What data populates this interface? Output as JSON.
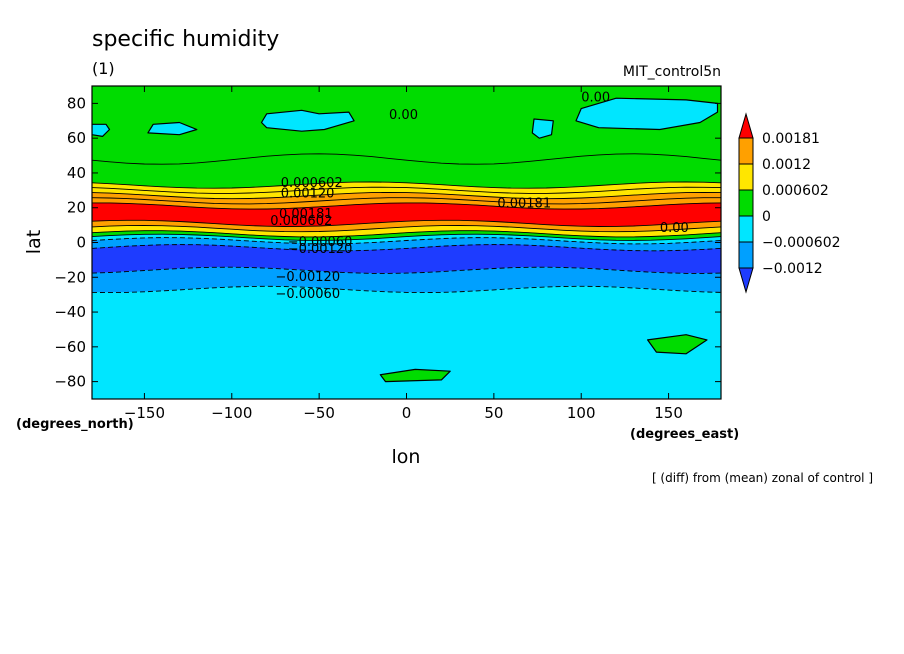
{
  "chart_data": {
    "type": "heatmap",
    "title": "specific humidity",
    "subtitle": "(1)",
    "run_label": "MIT_control5n",
    "footnote": "[ (diff) from (mean) zonal of control ]",
    "xlabel": "lon",
    "ylabel": "lat",
    "x_units": "(degrees_east)",
    "y_units": "(degrees_north)",
    "xlim": [
      -180,
      180
    ],
    "ylim": [
      -90,
      90
    ],
    "x_ticks": [
      -150,
      -100,
      -50,
      0,
      50,
      100,
      150
    ],
    "x_tick_labels": [
      "−150",
      "−100",
      "−50",
      "0",
      "50",
      "100",
      "150"
    ],
    "y_ticks": [
      80,
      60,
      40,
      20,
      0,
      -20,
      -40,
      -60,
      -80
    ],
    "y_tick_labels": [
      "80",
      "60",
      "40",
      "20",
      "0",
      "−20",
      "−40",
      "−60",
      "−80"
    ],
    "levels": [
      -0.0012,
      -0.000602,
      0,
      0.000602,
      0.0012,
      0.00181
    ],
    "legend": {
      "placement": "right",
      "entries": [
        {
          "label": "0.00181",
          "color": "#ffa000"
        },
        {
          "label": "0.0012",
          "color": "#ffe600"
        },
        {
          "label": "0.000602",
          "color": "#00dc00"
        },
        {
          "label": "0",
          "color": "#00e6ff"
        },
        {
          "label": "−0.000602",
          "color": "#00a0ff"
        },
        {
          "label": "−0.0012",
          "color": "#1e3cff"
        }
      ],
      "top_extension_color": "#ff0000",
      "bottom_extension_color": "#1e3cff"
    },
    "zonal_bands": [
      {
        "lat_from": 90,
        "lat_to": 48,
        "value": 0.0003,
        "color": "#00dc00"
      },
      {
        "lat_from": 48,
        "lat_to": 33,
        "value": 0.0004,
        "color": "#00dc00"
      },
      {
        "lat_from": 33,
        "lat_to": 30,
        "value": 0.0008,
        "color": "#ffe600"
      },
      {
        "lat_from": 30,
        "lat_to": 27,
        "value": 0.0009,
        "color": "#ffe600"
      },
      {
        "lat_from": 27,
        "lat_to": 24,
        "value": 0.0015,
        "color": "#ffa000"
      },
      {
        "lat_from": 24,
        "lat_to": 21,
        "value": 0.0016,
        "color": "#ffa000"
      },
      {
        "lat_from": 21,
        "lat_to": 11,
        "value": 0.002,
        "color": "#ff0000"
      },
      {
        "lat_from": 11,
        "lat_to": 8,
        "value": 0.0015,
        "color": "#ffa000"
      },
      {
        "lat_from": 8,
        "lat_to": 5,
        "value": 0.0009,
        "color": "#ffe600"
      },
      {
        "lat_from": 5,
        "lat_to": 3,
        "value": 0.0003,
        "color": "#00dc00"
      },
      {
        "lat_from": 3,
        "lat_to": 1,
        "value": -0.0003,
        "color": "#00e6ff"
      },
      {
        "lat_from": 1,
        "lat_to": -3,
        "value": -0.0009,
        "color": "#00a0ff"
      },
      {
        "lat_from": -3,
        "lat_to": -16,
        "value": -0.0015,
        "color": "#1e3cff"
      },
      {
        "lat_from": -16,
        "lat_to": -27,
        "value": -0.001,
        "color": "#00a0ff"
      },
      {
        "lat_from": -27,
        "lat_to": -90,
        "value": -0.0003,
        "color": "#00e6ff"
      }
    ],
    "patches": [
      {
        "name": "arctic-negative-patch",
        "color": "#00e6ff",
        "outline": true,
        "points": [
          [
            -80,
            74
          ],
          [
            -60,
            76
          ],
          [
            -50,
            74
          ],
          [
            -33,
            75
          ],
          [
            -30,
            70
          ],
          [
            -47,
            65
          ],
          [
            -60,
            64
          ],
          [
            -80,
            66
          ],
          [
            -83,
            69
          ]
        ]
      },
      {
        "name": "arctic-negative-patch",
        "color": "#00e6ff",
        "outline": true,
        "points": [
          [
            100,
            77
          ],
          [
            120,
            83
          ],
          [
            160,
            82
          ],
          [
            178,
            80
          ],
          [
            178,
            75
          ],
          [
            168,
            69
          ],
          [
            145,
            65
          ],
          [
            110,
            66
          ],
          [
            97,
            70
          ]
        ]
      },
      {
        "name": "arctic-negative-patch",
        "color": "#00e6ff",
        "outline": true,
        "points": [
          [
            -145,
            68
          ],
          [
            -130,
            69
          ],
          [
            -120,
            65
          ],
          [
            -130,
            62
          ],
          [
            -148,
            63
          ]
        ]
      },
      {
        "name": "arctic-negative-patch",
        "color": "#00e6ff",
        "outline": true,
        "points": [
          [
            -180,
            68
          ],
          [
            -172,
            68
          ],
          [
            -170,
            65
          ],
          [
            -174,
            61
          ],
          [
            -180,
            62
          ]
        ]
      },
      {
        "name": "arctic-negative-patch",
        "color": "#00e6ff",
        "outline": true,
        "points": [
          [
            73,
            71
          ],
          [
            84,
            70
          ],
          [
            83,
            62
          ],
          [
            76,
            60
          ],
          [
            72,
            63
          ]
        ]
      },
      {
        "name": "antarctic-positive-patch",
        "color": "#00dc00",
        "outline": true,
        "points": [
          [
            138,
            -56
          ],
          [
            160,
            -53
          ],
          [
            172,
            -56
          ],
          [
            160,
            -64
          ],
          [
            143,
            -63
          ]
        ]
      },
      {
        "name": "antarctic-positive-patch",
        "color": "#00dc00",
        "outline": true,
        "points": [
          [
            -15,
            -76
          ],
          [
            5,
            -73
          ],
          [
            25,
            -74
          ],
          [
            20,
            -79
          ],
          [
            -12,
            -80
          ]
        ]
      }
    ],
    "contour_labels": [
      {
        "lon": -72,
        "lat": 32,
        "text": "0.000602"
      },
      {
        "lon": -72,
        "lat": 26,
        "text": "0.00120"
      },
      {
        "lon": 52,
        "lat": 20,
        "text": "0.00181"
      },
      {
        "lon": -73,
        "lat": 14,
        "text": "0.00181"
      },
      {
        "lon": -78,
        "lat": 10,
        "text": "0.000602"
      },
      {
        "lon": -68,
        "lat": -2,
        "text": "−0.00060"
      },
      {
        "lon": -68,
        "lat": -6,
        "text": "−0.00120"
      },
      {
        "lon": -75,
        "lat": -22,
        "text": "−0.00120"
      },
      {
        "lon": -75,
        "lat": -32,
        "text": "−0.00060"
      },
      {
        "lon": -10,
        "lat": 71,
        "text": "0.00"
      },
      {
        "lon": 100,
        "lat": 81,
        "text": "0.00"
      },
      {
        "lon": 145,
        "lat": 6,
        "text": "0.00"
      }
    ]
  }
}
